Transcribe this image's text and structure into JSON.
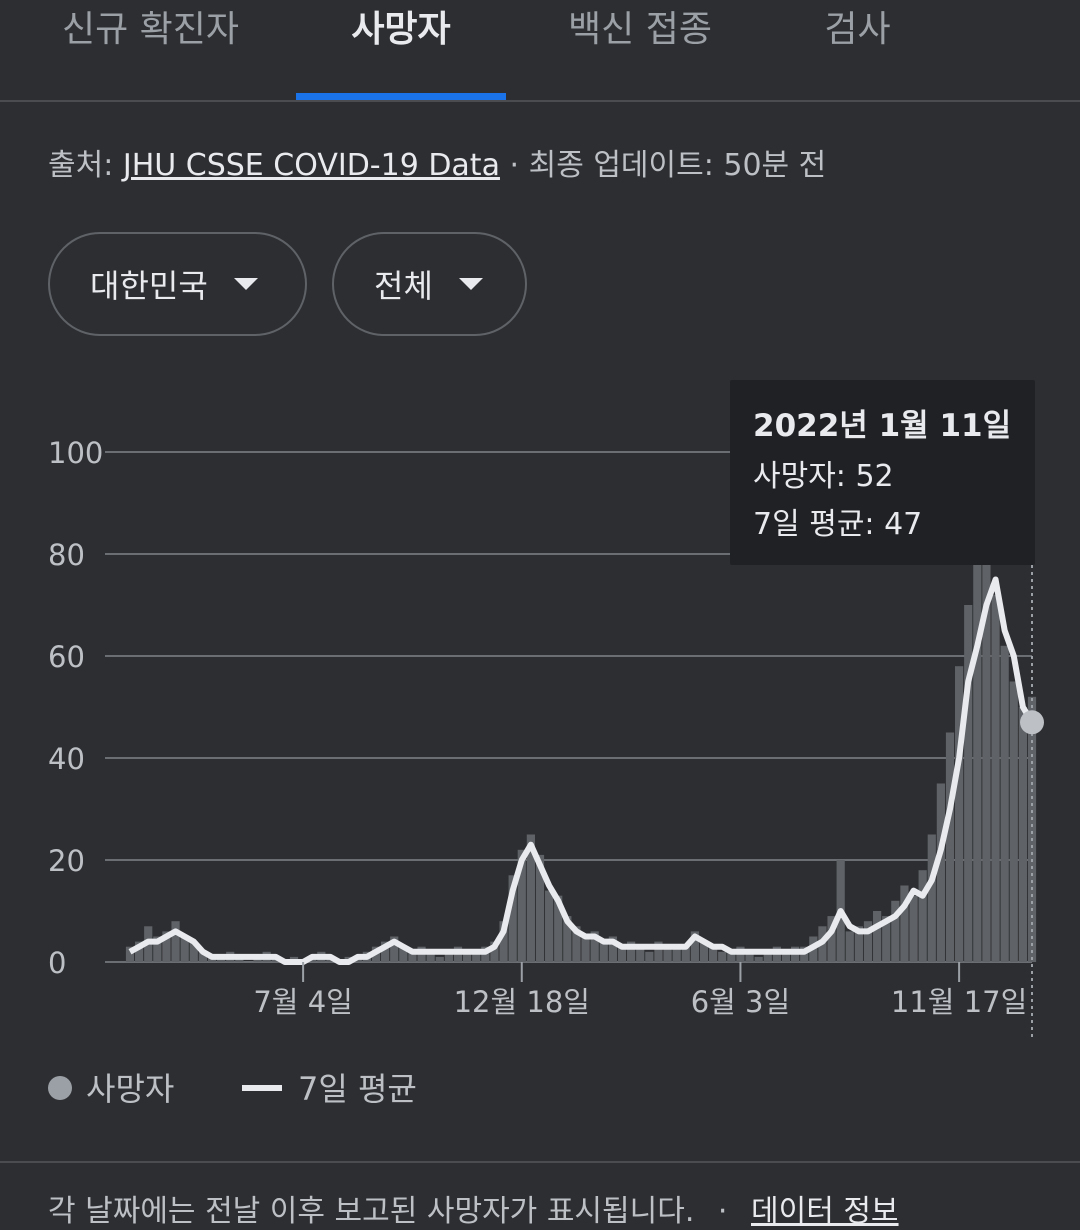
{
  "tabs": [
    "신규 확진자",
    "사망자",
    "백신 접종",
    "검사"
  ],
  "source": {
    "label": "출처:",
    "link": "JHU CSSE COVID-19 Data",
    "updated": "· 최종 업데이트: 50분 전"
  },
  "filters": [
    "대한민국",
    "전체"
  ],
  "chart_data": {
    "type": "bar",
    "categories": [
      null,
      null,
      null,
      null,
      null,
      null,
      null,
      null,
      null,
      null,
      null,
      null,
      null,
      null,
      null,
      null,
      null,
      null,
      null,
      "7월 4일",
      null,
      null,
      null,
      null,
      null,
      null,
      null,
      null,
      null,
      null,
      null,
      null,
      null,
      null,
      null,
      null,
      null,
      null,
      null,
      null,
      null,
      null,
      null,
      "12월 18일",
      null,
      null,
      null,
      null,
      null,
      null,
      null,
      null,
      null,
      null,
      null,
      null,
      null,
      null,
      null,
      null,
      null,
      null,
      null,
      null,
      null,
      null,
      null,
      "6월 3일",
      null,
      null,
      null,
      null,
      null,
      null,
      null,
      null,
      null,
      null,
      null,
      null,
      null,
      null,
      null,
      null,
      null,
      null,
      null,
      null,
      null,
      null,
      null,
      "11월 17일",
      null,
      null,
      null,
      null,
      null,
      null,
      null,
      null
    ],
    "series": [
      {
        "name": "사망자",
        "type": "bar",
        "color": "#5f6368",
        "legend_color": "#9aa0a6",
        "values": [
          3,
          4,
          7,
          5,
          6,
          8,
          5,
          4,
          2,
          1,
          1,
          2,
          1,
          0,
          1,
          2,
          1,
          0,
          1,
          0,
          1,
          2,
          1,
          0,
          1,
          1,
          2,
          3,
          4,
          5,
          3,
          2,
          3,
          2,
          1,
          2,
          3,
          2,
          2,
          3,
          4,
          8,
          17,
          22,
          25,
          21,
          14,
          13,
          9,
          7,
          5,
          6,
          4,
          5,
          3,
          4,
          3,
          2,
          4,
          3,
          3,
          3,
          6,
          4,
          3,
          2,
          2,
          3,
          2,
          1,
          2,
          3,
          2,
          3,
          3,
          5,
          7,
          9,
          20,
          6,
          7,
          8,
          10,
          9,
          12,
          15,
          13,
          18,
          25,
          35,
          45,
          58,
          70,
          80,
          85,
          72,
          62,
          55,
          50,
          52
        ]
      },
      {
        "name": "7일 평균",
        "type": "line",
        "color": "#e8eaed",
        "values": [
          2,
          3,
          4,
          4,
          5,
          6,
          5,
          4,
          2,
          1,
          1,
          1,
          1,
          1,
          1,
          1,
          1,
          0,
          0,
          0,
          1,
          1,
          1,
          0,
          0,
          1,
          1,
          2,
          3,
          4,
          3,
          2,
          2,
          2,
          2,
          2,
          2,
          2,
          2,
          2,
          3,
          6,
          14,
          20,
          23,
          19,
          15,
          12,
          8,
          6,
          5,
          5,
          4,
          4,
          3,
          3,
          3,
          3,
          3,
          3,
          3,
          3,
          5,
          4,
          3,
          3,
          2,
          2,
          2,
          2,
          2,
          2,
          2,
          2,
          2,
          3,
          4,
          6,
          10,
          7,
          6,
          6,
          7,
          8,
          9,
          11,
          14,
          13,
          16,
          22,
          30,
          40,
          55,
          62,
          70,
          75,
          65,
          60,
          50,
          47
        ]
      }
    ],
    "ylim": [
      0,
      100
    ],
    "yticks": [
      0,
      20,
      40,
      60,
      80,
      100
    ],
    "grid": true,
    "tooltip": {
      "title": "2022년 1월 11일",
      "lines": [
        "사망자: 52",
        "7일 평균: 47"
      ]
    }
  },
  "footer": {
    "note": "각 날짜에는 전날 이후 보고된 사망자가 표시됩니다.",
    "separator": "·",
    "link": "데이터 정보"
  }
}
